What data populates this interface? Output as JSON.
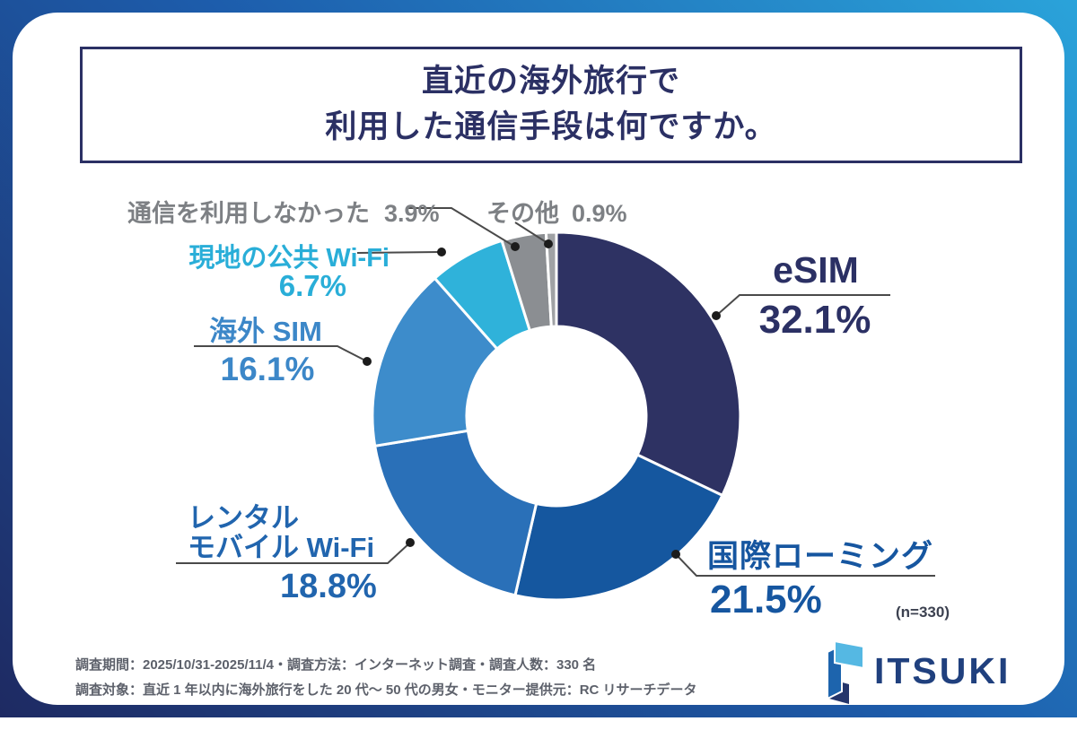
{
  "title": {
    "line1": "直近の海外旅行で",
    "line2": "利用した通信手段は何ですか。"
  },
  "chart_data": {
    "type": "pie",
    "donut": true,
    "title": "直近の海外旅行で利用した通信手段は何ですか。",
    "start_angle_deg": 0,
    "direction": "clockwise",
    "sample_size_label": "(n=330)",
    "segments": [
      {
        "label": "eSIM",
        "value": 32.1,
        "color": "#2e3263"
      },
      {
        "label": "国際ローミング",
        "value": 21.5,
        "color": "#15579f"
      },
      {
        "label": "レンタルモバイル Wi-Fi",
        "value": 18.8,
        "color": "#2a70b8"
      },
      {
        "label": "海外 SIM",
        "value": 16.1,
        "color": "#3d8ccb"
      },
      {
        "label": "現地の公共 Wi-Fi",
        "value": 6.7,
        "color": "#2fb2da"
      },
      {
        "label": "通信を利用しなかった",
        "value": 3.9,
        "color": "#8b8e92"
      },
      {
        "label": "その他",
        "value": 0.9,
        "color": "#a0a2a5"
      }
    ]
  },
  "labels": {
    "esim_pct": "32.1%",
    "roaming_pct": "21.5%",
    "rental_line1": "レンタル",
    "rental_line2": "モバイル Wi-Fi",
    "rental_pct": "18.8%",
    "overseas_sim_pct": "16.1%",
    "public_wifi_pct": "6.7%",
    "no_comm_pct": "3.9%",
    "other_pct": "0.9%",
    "sample_n": "(n=330)"
  },
  "footer": {
    "line1": "調査期間：2025/10/31-2025/11/4・調査方法：インターネット調査・調査人数：330 名",
    "line2": "調査対象：直近 1 年以内に海外旅行をした 20 代〜 50 代の男女・モニター提供元：RC リサーチデータ"
  },
  "logo": {
    "text": "ITSUKI"
  }
}
